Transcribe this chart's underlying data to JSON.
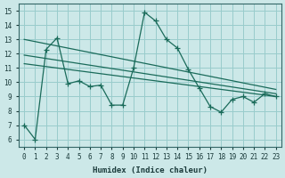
{
  "xlabel": "Humidex (Indice chaleur)",
  "bg_color": "#cce8e8",
  "grid_color": "#99cccc",
  "line_color": "#1a6b5a",
  "x_data": [
    0,
    1,
    2,
    3,
    4,
    5,
    6,
    7,
    8,
    9,
    10,
    11,
    12,
    13,
    14,
    15,
    16,
    17,
    18,
    19,
    20,
    21,
    22,
    23
  ],
  "y_main": [
    7.0,
    6.0,
    12.3,
    13.1,
    9.9,
    10.1,
    9.7,
    9.8,
    8.4,
    8.4,
    11.0,
    14.9,
    14.3,
    13.0,
    12.4,
    10.9,
    9.6,
    8.3,
    7.9,
    8.8,
    9.0,
    8.6,
    9.2,
    9.0
  ],
  "reg_line1": [
    13.0,
    9.5
  ],
  "reg_line2": [
    11.9,
    9.2
  ],
  "reg_line3": [
    11.3,
    9.0
  ],
  "xlim": [
    -0.5,
    23.5
  ],
  "ylim": [
    5.5,
    15.5
  ],
  "yticks": [
    6,
    7,
    8,
    9,
    10,
    11,
    12,
    13,
    14,
    15
  ],
  "xticks": [
    0,
    1,
    2,
    3,
    4,
    5,
    6,
    7,
    8,
    9,
    10,
    11,
    12,
    13,
    14,
    15,
    16,
    17,
    18,
    19,
    20,
    21,
    22,
    23
  ]
}
